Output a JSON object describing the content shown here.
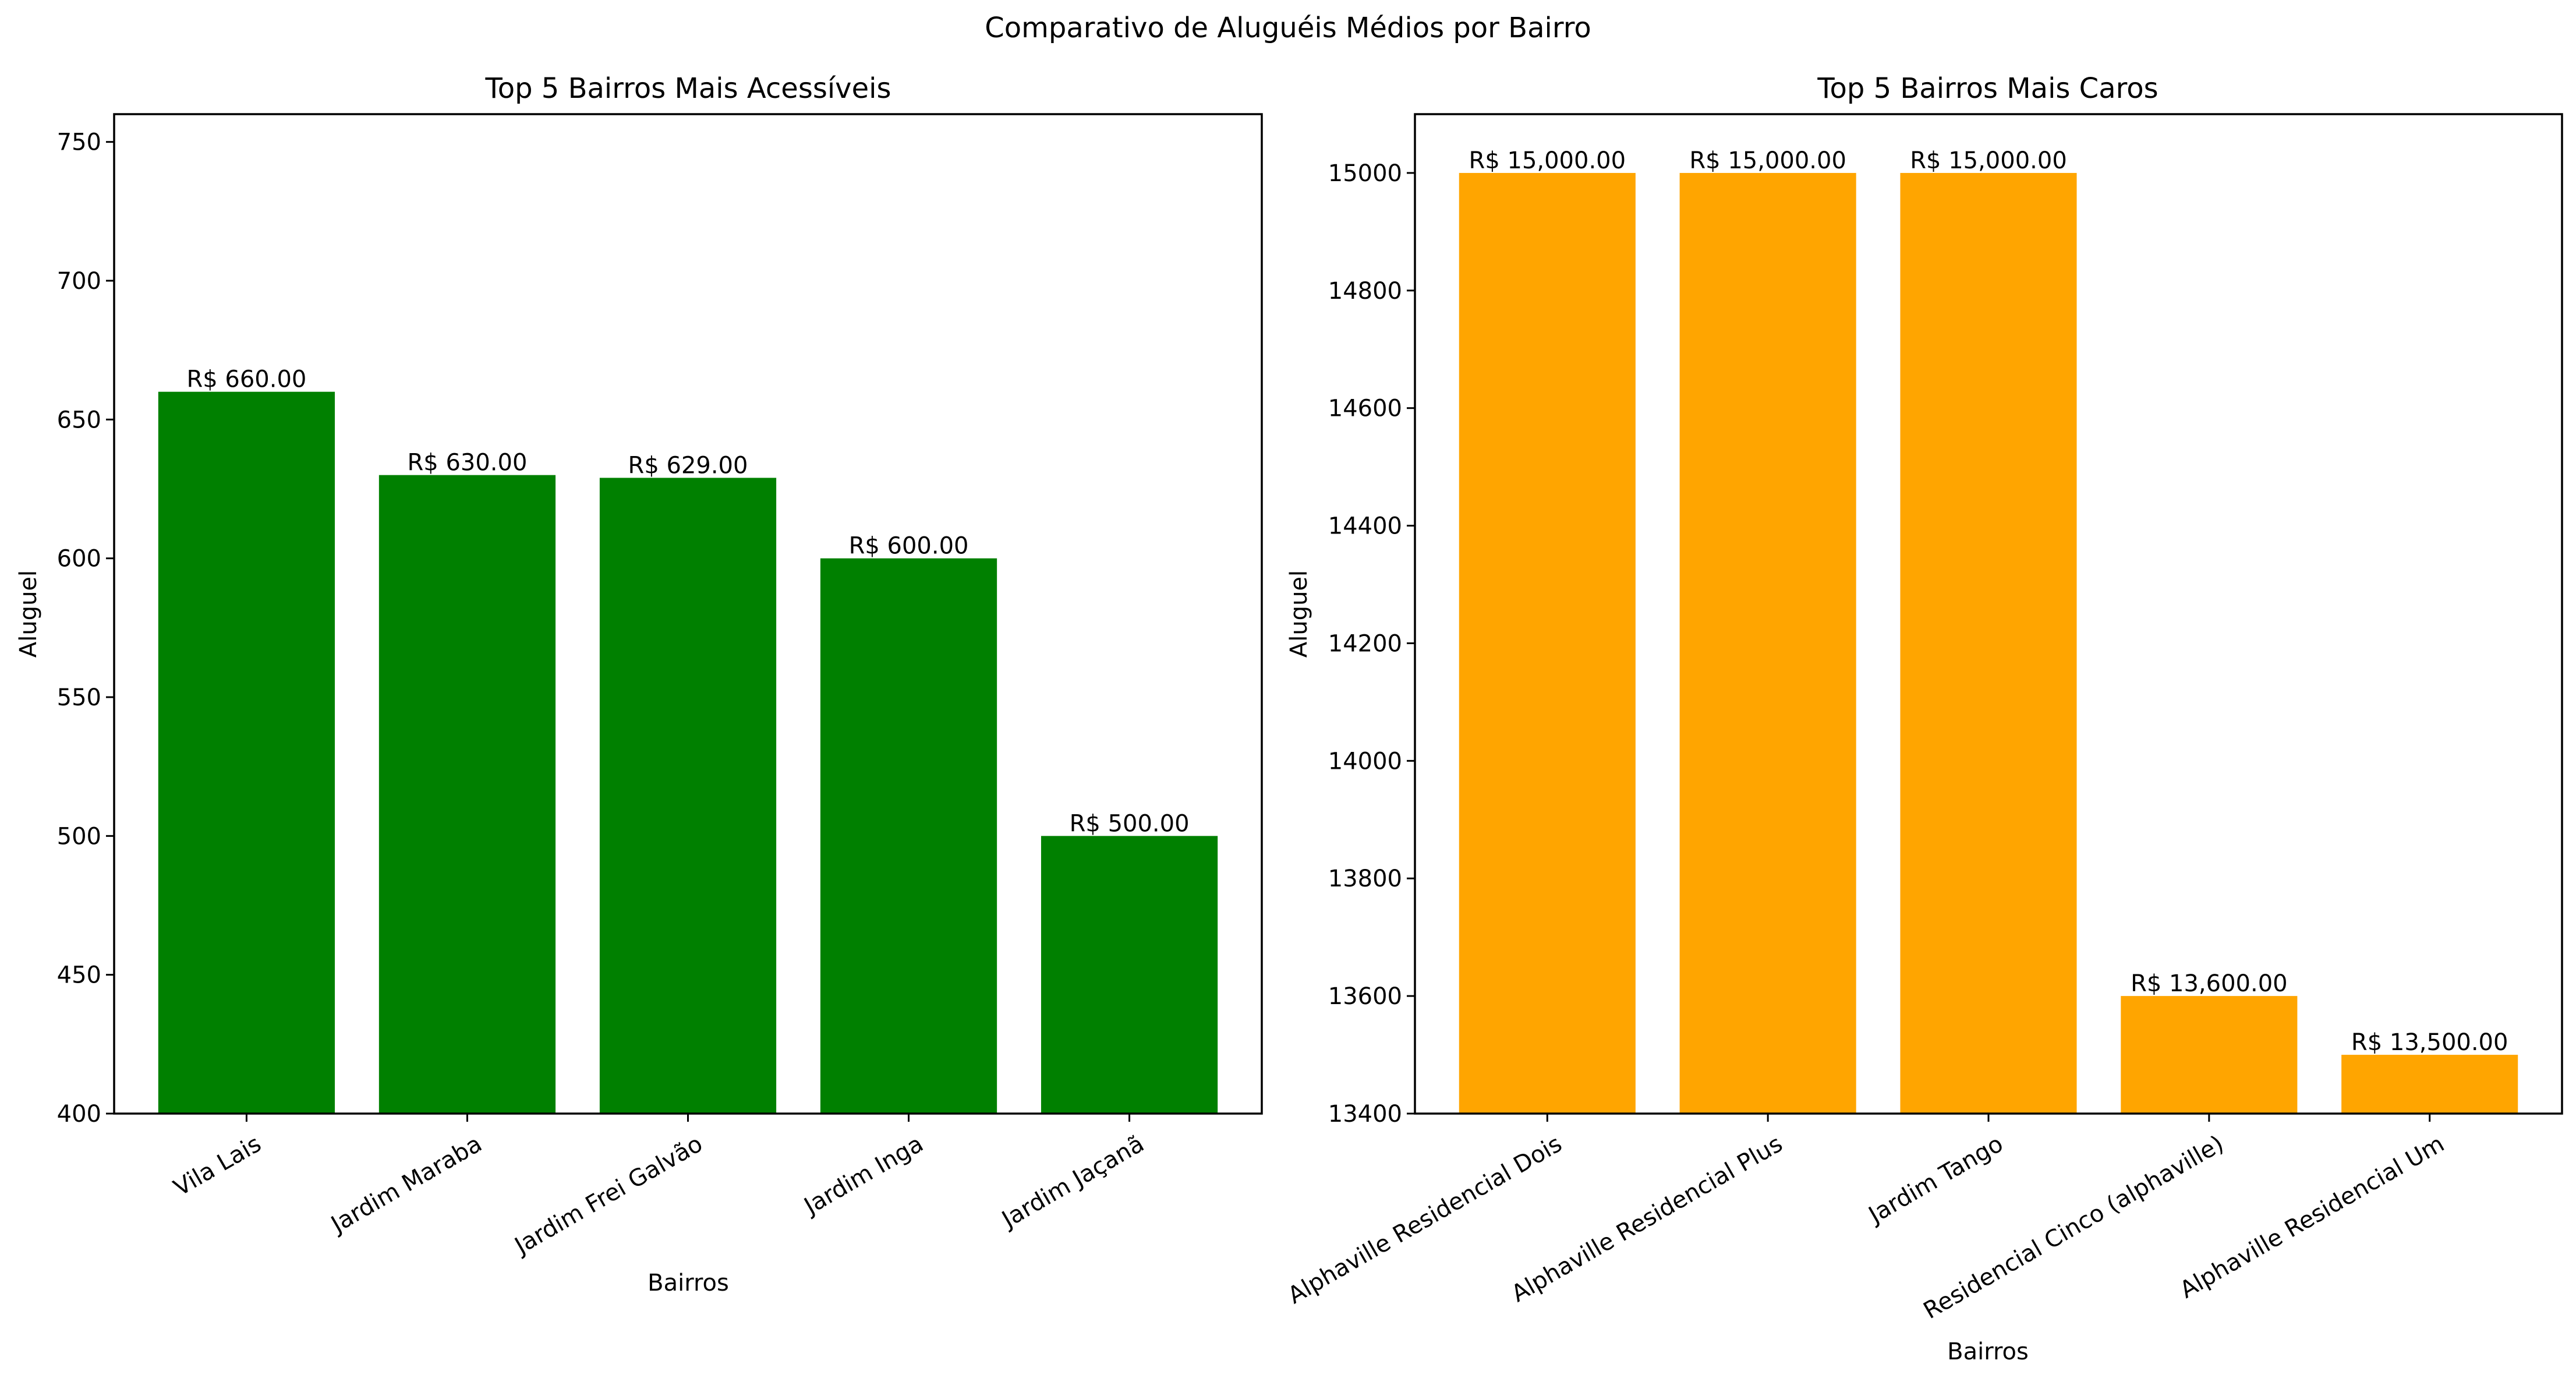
{
  "figure": {
    "suptitle": "Comparativo de Aluguéis Médios por Bairro"
  },
  "chart_data": [
    {
      "type": "bar",
      "title": "Top 5 Bairros Mais Acessíveis",
      "xlabel": "Bairros",
      "ylabel": "Aluguel",
      "categories": [
        "Vila Lais",
        "Jardim Maraba",
        "Jardim Frei Galvão",
        "Jardim Inga",
        "Jardim Jaçanã"
      ],
      "values": [
        660,
        630,
        629,
        600,
        500
      ],
      "value_labels": [
        "R$ 660.00",
        "R$ 630.00",
        "R$ 629.00",
        "R$ 600.00",
        "R$ 500.00"
      ],
      "ylim": [
        400,
        760
      ],
      "yticks": [
        400,
        450,
        500,
        550,
        600,
        650,
        700,
        750
      ],
      "color": "#008000",
      "grid": false,
      "xtick_rotation": 30
    },
    {
      "type": "bar",
      "title": "Top 5 Bairros Mais Caros",
      "xlabel": "Bairros",
      "ylabel": "Aluguel",
      "categories": [
        "Alphaville Residencial Dois",
        "Alphaville Residencial Plus",
        "Jardim Tango",
        "Residencial Cinco (alphaville)",
        "Alphaville Residencial Um"
      ],
      "values": [
        15000,
        15000,
        15000,
        13600,
        13500
      ],
      "value_labels": [
        "R$ 15,000.00",
        "R$ 15,000.00",
        "R$ 15,000.00",
        "R$ 13,600.00",
        "R$ 13,500.00"
      ],
      "ylim": [
        13400,
        15100
      ],
      "yticks": [
        13400,
        13600,
        13800,
        14000,
        14200,
        14400,
        14600,
        14800,
        15000
      ],
      "color": "#ffa500",
      "grid": false,
      "xtick_rotation": 30
    }
  ]
}
